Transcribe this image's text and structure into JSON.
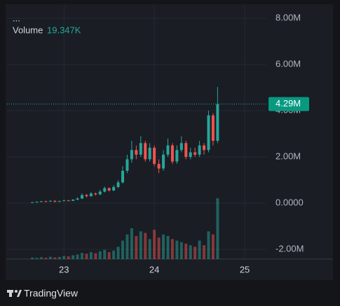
{
  "chart_data": {
    "type": "candlestick",
    "symbol": "...",
    "x": [
      22.65,
      22.7,
      22.75,
      22.8,
      22.85,
      22.9,
      22.95,
      23.0,
      23.05,
      23.1,
      23.15,
      23.2,
      23.25,
      23.3,
      23.35,
      23.4,
      23.45,
      23.5,
      23.55,
      23.6,
      23.65,
      23.7,
      23.75,
      23.8,
      23.85,
      23.9,
      23.95,
      24.0,
      24.05,
      24.1,
      24.15,
      24.2,
      24.25,
      24.3,
      24.35,
      24.4,
      24.45,
      24.5,
      24.55,
      24.6,
      24.65,
      24.7
    ],
    "open": [
      30000,
      40000,
      60000,
      80000,
      70000,
      100000,
      60000,
      90000,
      120000,
      100000,
      150000,
      200000,
      350000,
      300000,
      420000,
      380000,
      500000,
      650000,
      550000,
      700000,
      900000,
      1400000,
      1900000,
      2300000,
      2100000,
      2600000,
      1900000,
      2400000,
      1700000,
      1500000,
      2100000,
      2500000,
      1800000,
      2300000,
      2600000,
      2000000,
      2200000,
      2100000,
      2500000,
      2300000,
      3800000,
      2700000
    ],
    "high": [
      50000,
      80000,
      100000,
      110000,
      130000,
      120000,
      110000,
      150000,
      140000,
      180000,
      260000,
      420000,
      400000,
      480000,
      460000,
      580000,
      720000,
      680000,
      780000,
      1000000,
      1600000,
      2100000,
      2700000,
      2500000,
      2900000,
      2700000,
      2600000,
      2500000,
      1900000,
      2300000,
      2800000,
      2600000,
      2500000,
      2900000,
      2700000,
      2400000,
      2400000,
      2700000,
      2600000,
      4000000,
      3900000,
      5030000
    ],
    "low": [
      20000,
      30000,
      50000,
      50000,
      60000,
      40000,
      50000,
      80000,
      80000,
      90000,
      130000,
      180000,
      250000,
      280000,
      330000,
      350000,
      460000,
      500000,
      520000,
      650000,
      850000,
      1300000,
      1750000,
      1900000,
      2000000,
      1800000,
      1800000,
      1600000,
      1300000,
      1400000,
      2000000,
      1700000,
      1700000,
      2200000,
      1900000,
      1900000,
      2000000,
      2000000,
      2100000,
      2200000,
      2500000,
      2600000
    ],
    "close": [
      40000,
      60000,
      80000,
      70000,
      100000,
      60000,
      90000,
      120000,
      100000,
      150000,
      200000,
      350000,
      300000,
      420000,
      380000,
      500000,
      650000,
      550000,
      700000,
      900000,
      1400000,
      1900000,
      2300000,
      2100000,
      2600000,
      1900000,
      2400000,
      1700000,
      1500000,
      2100000,
      2500000,
      1800000,
      2300000,
      2600000,
      2000000,
      2200000,
      2100000,
      2500000,
      2300000,
      3800000,
      2700000,
      4290000
    ],
    "colors": {
      "up": "#26a69a",
      "down": "#ef5350"
    },
    "xlim": [
      22.37,
      25.24
    ],
    "xticks": [
      23,
      24,
      25
    ],
    "ylim": [
      -2420000,
      8550000
    ],
    "yticks": [
      {
        "value": -2000000,
        "label": "-2.00M"
      },
      {
        "value": 0,
        "label": "0.0000"
      },
      {
        "value": 2000000,
        "label": "2.00M"
      },
      {
        "value": 4000000,
        "label": "4.00M"
      },
      {
        "value": 6000000,
        "label": "6.00M"
      },
      {
        "value": 8000000,
        "label": "8.00M"
      }
    ],
    "grid": true,
    "last_price": {
      "value": 4290000,
      "label": "4.29M"
    },
    "volume": {
      "name": "Volume",
      "legend_value": "19.347K",
      "vlim": [
        0,
        500000
      ],
      "values": [
        10000,
        8000,
        12000,
        9000,
        15000,
        11000,
        14000,
        20000,
        18000,
        25000,
        30000,
        40000,
        35000,
        45000,
        38000,
        50000,
        60000,
        45000,
        55000,
        80000,
        120000,
        160000,
        200000,
        150000,
        180000,
        170000,
        130000,
        190000,
        140000,
        160000,
        150000,
        130000,
        120000,
        110000,
        100000,
        90000,
        80000,
        120000,
        90000,
        180000,
        160000,
        395000
      ]
    }
  },
  "brand": "TradingView"
}
